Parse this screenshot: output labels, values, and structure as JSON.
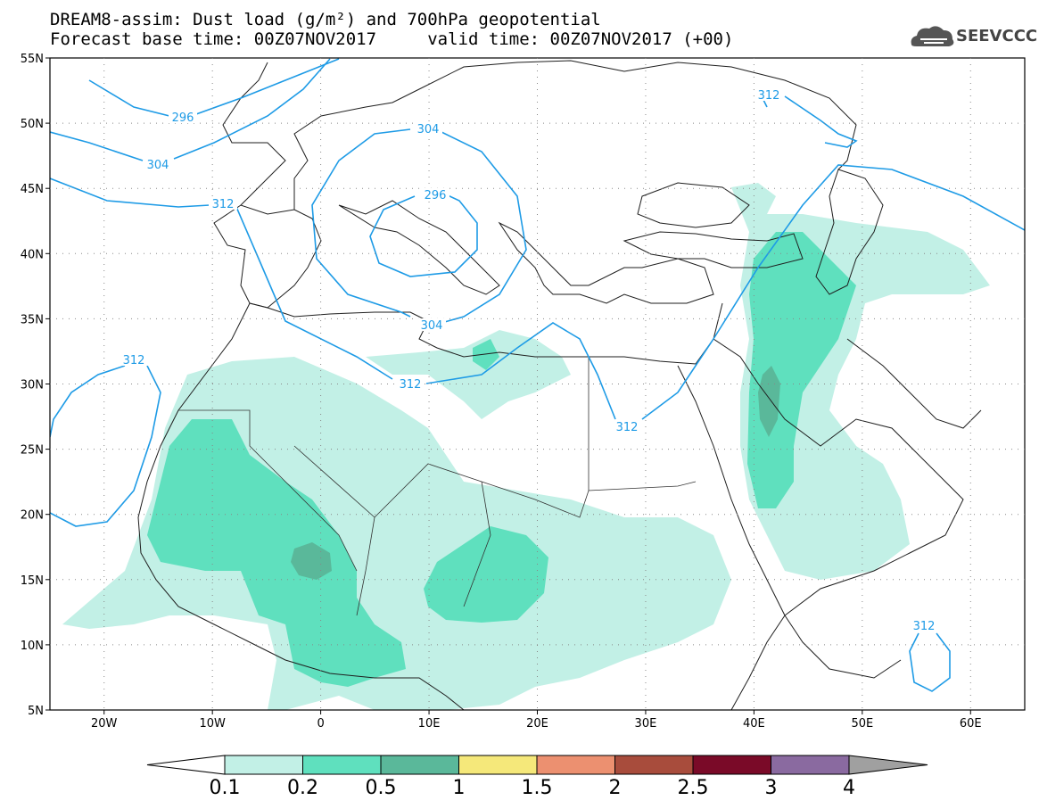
{
  "title": {
    "line1": "DREAM8-assim: Dust load (g/m²) and 700hPa geopotential",
    "line2": "Forecast base time: 00Z07NOV2017     valid time: 00Z07NOV2017 (+00)"
  },
  "logo": {
    "text": "SEEVCCC",
    "icon": "cloud-icon"
  },
  "map": {
    "lat_labels": [
      "55N",
      "50N",
      "45N",
      "40N",
      "35N",
      "30N",
      "25N",
      "20N",
      "15N",
      "10N",
      "5N"
    ],
    "lon_labels": [
      "20W",
      "10W",
      "0",
      "10E",
      "20E",
      "30E",
      "40E",
      "50E",
      "60E"
    ],
    "contour_labels": [
      "296",
      "304",
      "312",
      "304",
      "296",
      "312",
      "312",
      "304",
      "312",
      "312",
      "312"
    ],
    "dust_colors": {
      "c01": "#c2f0e6",
      "c02": "#5fe0be",
      "c05": "#5ab89a"
    },
    "contour_color": "#1e9be6"
  },
  "legend": {
    "labels": [
      "0.1",
      "0.2",
      "0.5",
      "1",
      "1.5",
      "2",
      "2.5",
      "3",
      "4"
    ],
    "colors": [
      "#ffffff",
      "#c2f0e6",
      "#5fe0be",
      "#5ab89a",
      "#f5e87a",
      "#ec9070",
      "#a84c3c",
      "#7a0a28",
      "#8a6aa0",
      "#a0a0a0"
    ]
  }
}
